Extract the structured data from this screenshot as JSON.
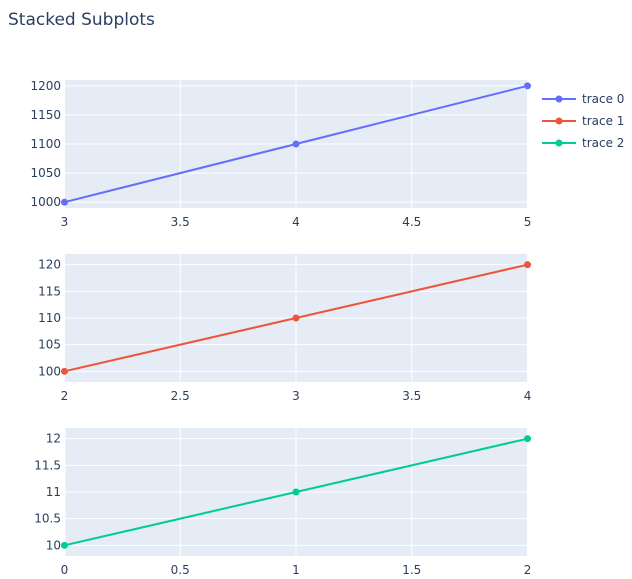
{
  "chart_data": {
    "title": "Stacked Subplots",
    "type": "line",
    "legend_position": "top-right",
    "grid": true,
    "colors": {
      "plot_bg": "#e5ecf6",
      "grid": "#ffffff",
      "text": "#2a3f5f"
    },
    "subplots": [
      {
        "series": {
          "name": "trace 0",
          "color": "#636efa",
          "x": [
            3,
            4,
            5
          ],
          "y": [
            1000,
            1100,
            1200
          ]
        },
        "xlim": [
          2.998,
          5.002
        ],
        "ylim": [
          990,
          1210
        ],
        "xticks": [
          3,
          3.5,
          4,
          4.5,
          5
        ],
        "xtick_labels": [
          "3",
          "3.5",
          "4",
          "4.5",
          "5"
        ],
        "yticks": [
          1000,
          1050,
          1100,
          1150,
          1200
        ],
        "ytick_labels": [
          "1000",
          "1050",
          "1100",
          "1150",
          "1200"
        ]
      },
      {
        "series": {
          "name": "trace 1",
          "color": "#ef553b",
          "x": [
            2,
            3,
            4
          ],
          "y": [
            100,
            110,
            120
          ]
        },
        "xlim": [
          1.998,
          4.002
        ],
        "ylim": [
          98,
          122
        ],
        "xticks": [
          2,
          2.5,
          3,
          3.5,
          4
        ],
        "xtick_labels": [
          "2",
          "2.5",
          "3",
          "3.5",
          "4"
        ],
        "yticks": [
          100,
          105,
          110,
          115,
          120
        ],
        "ytick_labels": [
          "100",
          "105",
          "110",
          "115",
          "120"
        ]
      },
      {
        "series": {
          "name": "trace 2",
          "color": "#00cc96",
          "x": [
            0,
            1,
            2
          ],
          "y": [
            10,
            11,
            12
          ]
        },
        "xlim": [
          -0.002,
          2.002
        ],
        "ylim": [
          9.8,
          12.2
        ],
        "xticks": [
          0,
          0.5,
          1,
          1.5,
          2
        ],
        "xtick_labels": [
          "0",
          "0.5",
          "1",
          "1.5",
          "2"
        ],
        "yticks": [
          10,
          10.5,
          11,
          11.5,
          12
        ],
        "ytick_labels": [
          "10",
          "10.5",
          "11",
          "11.5",
          "12"
        ]
      }
    ]
  }
}
